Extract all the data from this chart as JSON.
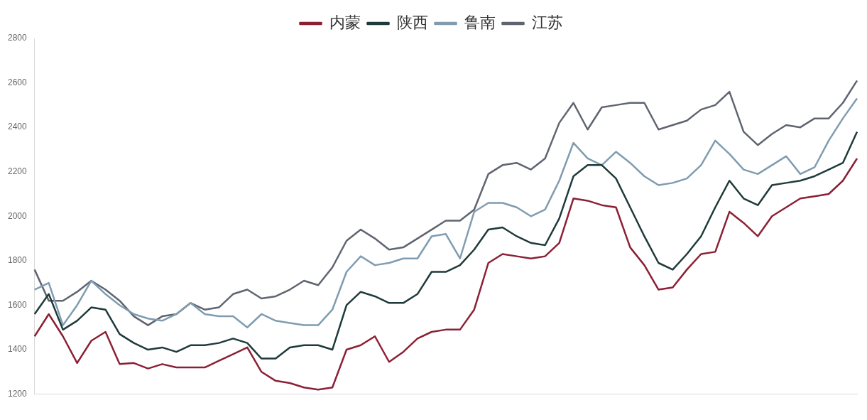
{
  "chart_data": {
    "type": "line",
    "legend": "top",
    "grid": false,
    "ylim": [
      1200,
      2800
    ],
    "yticks": [
      1200,
      1400,
      1600,
      1800,
      2000,
      2200,
      2400,
      2600,
      2800
    ],
    "marker": "none",
    "line_style": "solid",
    "categories": [
      null,
      null,
      null,
      null,
      null,
      null,
      null,
      null,
      null,
      null,
      null,
      null,
      null,
      null,
      null,
      null,
      null,
      null,
      null,
      null,
      null,
      null,
      null,
      null,
      null,
      null,
      null,
      null,
      null,
      null,
      null,
      null,
      null,
      null,
      null,
      null,
      null,
      null,
      null,
      null,
      null,
      null,
      null,
      null,
      null,
      null,
      null,
      null,
      null,
      null,
      null,
      null,
      null,
      null,
      null,
      null,
      null,
      null,
      null
    ],
    "series": [
      {
        "name": "内蒙",
        "color": "#8b2035",
        "values": [
          1460,
          1560,
          1460,
          1340,
          1440,
          1480,
          1335,
          1340,
          1315,
          1335,
          1320,
          1320,
          1320,
          1350,
          1380,
          1410,
          1300,
          1260,
          1250,
          1230,
          1220,
          1230,
          1400,
          1420,
          1460,
          1345,
          1390,
          1450,
          1480,
          1490,
          1490,
          1580,
          1790,
          1830,
          1820,
          1810,
          1820,
          1880,
          2080,
          2070,
          2050,
          2040,
          1860,
          1780,
          1670,
          1680,
          1760,
          1830,
          1840,
          2020,
          1970,
          1910,
          2000,
          2040,
          2080,
          2090,
          2100,
          2160,
          2260
        ]
      },
      {
        "name": "陕西",
        "color": "#1f3a3a",
        "values": [
          1560,
          1650,
          1490,
          1530,
          1590,
          1580,
          1470,
          1430,
          1400,
          1410,
          1390,
          1420,
          1420,
          1430,
          1450,
          1430,
          1360,
          1360,
          1410,
          1420,
          1420,
          1400,
          1600,
          1660,
          1640,
          1610,
          1610,
          1650,
          1750,
          1750,
          1780,
          1850,
          1940,
          1950,
          1910,
          1880,
          1870,
          1990,
          2180,
          2230,
          2230,
          2170,
          2040,
          1910,
          1790,
          1760,
          1830,
          1910,
          2040,
          2160,
          2080,
          2050,
          2140,
          2150,
          2160,
          2180,
          2210,
          2240,
          2380
        ]
      },
      {
        "name": "鲁南",
        "color": "#7f9cb0",
        "values": [
          1670,
          1700,
          1510,
          1600,
          1710,
          1650,
          1600,
          1560,
          1540,
          1530,
          1560,
          1610,
          1560,
          1550,
          1550,
          1500,
          1560,
          1530,
          1520,
          1510,
          1510,
          1580,
          1750,
          1820,
          1780,
          1790,
          1810,
          1810,
          1910,
          1920,
          1810,
          2020,
          2060,
          2060,
          2040,
          2000,
          2030,
          2160,
          2330,
          2260,
          2230,
          2290,
          2240,
          2180,
          2140,
          2150,
          2170,
          2230,
          2340,
          2280,
          2210,
          2190,
          2230,
          2270,
          2190,
          2220,
          2340,
          2440,
          2530
        ]
      },
      {
        "name": "江苏",
        "color": "#5f6470",
        "values": [
          1760,
          1620,
          1620,
          1660,
          1710,
          1670,
          1620,
          1550,
          1510,
          1550,
          1560,
          1610,
          1580,
          1590,
          1650,
          1670,
          1630,
          1640,
          1670,
          1710,
          1690,
          1770,
          1890,
          1940,
          1900,
          1850,
          1860,
          1900,
          1940,
          1980,
          1980,
          2030,
          2190,
          2230,
          2240,
          2210,
          2260,
          2420,
          2510,
          2390,
          2490,
          2500,
          2510,
          2510,
          2390,
          2410,
          2430,
          2480,
          2500,
          2560,
          2380,
          2320,
          2370,
          2410,
          2400,
          2440,
          2440,
          2510,
          2610
        ]
      }
    ]
  }
}
